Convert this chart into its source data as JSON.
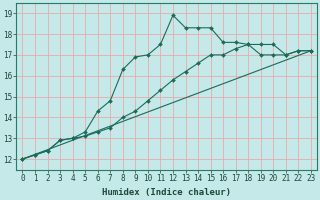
{
  "xlabel": "Humidex (Indice chaleur)",
  "ylabel": "",
  "bg_color": "#c5e8e8",
  "grid_color": "#e8aaaa",
  "line_color": "#1a6b5a",
  "ylim": [
    11.5,
    19.5
  ],
  "xlim": [
    -0.5,
    23.5
  ],
  "yticks": [
    12,
    13,
    14,
    15,
    16,
    17,
    18,
    19
  ],
  "xticks": [
    0,
    1,
    2,
    3,
    4,
    5,
    6,
    7,
    8,
    9,
    10,
    11,
    12,
    13,
    14,
    15,
    16,
    17,
    18,
    19,
    20,
    21,
    22,
    23
  ],
  "line1_x": [
    0,
    1,
    2,
    3,
    4,
    5,
    6,
    7,
    8,
    9,
    10,
    11,
    12,
    13,
    14,
    15,
    16,
    17,
    18,
    19,
    20,
    21,
    22,
    23
  ],
  "line1_y": [
    12.0,
    12.2,
    12.4,
    12.9,
    13.0,
    13.3,
    14.3,
    14.8,
    16.3,
    16.9,
    17.0,
    17.5,
    18.9,
    18.3,
    18.3,
    18.3,
    17.6,
    17.6,
    17.5,
    17.5,
    17.5,
    17.0,
    17.2,
    17.2
  ],
  "line2_x": [
    0,
    1,
    2,
    3,
    4,
    5,
    6,
    7,
    8,
    9,
    10,
    11,
    12,
    13,
    14,
    15,
    16,
    17,
    18,
    19,
    20,
    21,
    22,
    23
  ],
  "line2_y": [
    12.0,
    12.2,
    12.4,
    12.9,
    13.0,
    13.1,
    13.3,
    13.5,
    14.0,
    14.3,
    14.8,
    15.3,
    15.8,
    16.2,
    16.6,
    17.0,
    17.0,
    17.3,
    17.5,
    17.0,
    17.0,
    17.0,
    17.2,
    17.2
  ],
  "line3_x": [
    0,
    23
  ],
  "line3_y": [
    12.0,
    17.2
  ],
  "tick_fontsize": 5.5,
  "xlabel_fontsize": 6.5,
  "marker_size": 2.0,
  "line_width": 0.8
}
